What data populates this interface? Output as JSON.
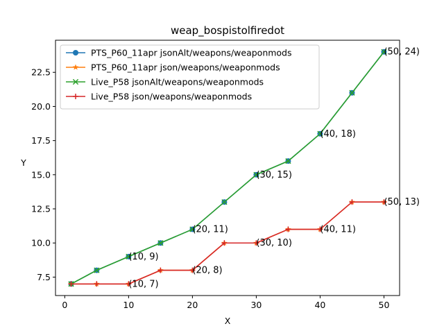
{
  "chart_data": {
    "type": "line",
    "title": "weap_bospistolfiredot",
    "xlabel": "X",
    "ylabel": "Y",
    "xlim": [
      -1.45,
      52.45
    ],
    "ylim": [
      6.15,
      24.85
    ],
    "xticks": [
      0,
      10,
      20,
      30,
      40,
      50
    ],
    "yticks": [
      7.5,
      10.0,
      12.5,
      15.0,
      17.5,
      20.0,
      22.5
    ],
    "ytick_labels": [
      "7.5",
      "10.0",
      "12.5",
      "15.0",
      "17.5",
      "20.0",
      "22.5"
    ],
    "grid": false,
    "legend_position": "upper-left",
    "series": [
      {
        "name": "PTS_P60_11apr jsonAlt/weapons/weaponmods",
        "color": "#1f77b4",
        "marker": "circle",
        "x": [
          1,
          5,
          10,
          15,
          20,
          25,
          30,
          35,
          40,
          45,
          50
        ],
        "y": [
          7,
          8,
          9,
          10,
          11,
          13,
          15,
          16,
          18,
          21,
          24
        ]
      },
      {
        "name": "PTS_P60_11apr json/weapons/weaponmods",
        "color": "#ff7f0e",
        "marker": "star",
        "x": [
          1,
          5,
          10,
          15,
          20,
          25,
          30,
          35,
          40,
          45,
          50
        ],
        "y": [
          7,
          7,
          7,
          8,
          8,
          10,
          10,
          11,
          11,
          13,
          13
        ]
      },
      {
        "name": "Live_P58 jsonAlt/weapons/weaponmods",
        "color": "#2ca02c",
        "marker": "x",
        "x": [
          1,
          5,
          10,
          15,
          20,
          25,
          30,
          35,
          40,
          45,
          50
        ],
        "y": [
          7,
          8,
          9,
          10,
          11,
          13,
          15,
          16,
          18,
          21,
          24
        ]
      },
      {
        "name": "Live_P58 json/weapons/weaponmods",
        "color": "#d62728",
        "marker": "plus",
        "x": [
          1,
          5,
          10,
          15,
          20,
          25,
          30,
          35,
          40,
          45,
          50
        ],
        "y": [
          7,
          7,
          7,
          8,
          8,
          10,
          10,
          11,
          11,
          13,
          13
        ]
      }
    ],
    "annotations": [
      {
        "x": 10,
        "y": 9,
        "text": "(10, 9)"
      },
      {
        "x": 20,
        "y": 11,
        "text": "(20, 11)"
      },
      {
        "x": 30,
        "y": 15,
        "text": "(30, 15)"
      },
      {
        "x": 40,
        "y": 18,
        "text": "(40, 18)"
      },
      {
        "x": 50,
        "y": 24,
        "text": "(50, 24)"
      },
      {
        "x": 10,
        "y": 7,
        "text": "(10, 7)"
      },
      {
        "x": 20,
        "y": 8,
        "text": "(20, 8)"
      },
      {
        "x": 30,
        "y": 10,
        "text": "(30, 10)"
      },
      {
        "x": 40,
        "y": 11,
        "text": "(40, 11)"
      },
      {
        "x": 50,
        "y": 13,
        "text": "(50, 13)"
      }
    ]
  }
}
